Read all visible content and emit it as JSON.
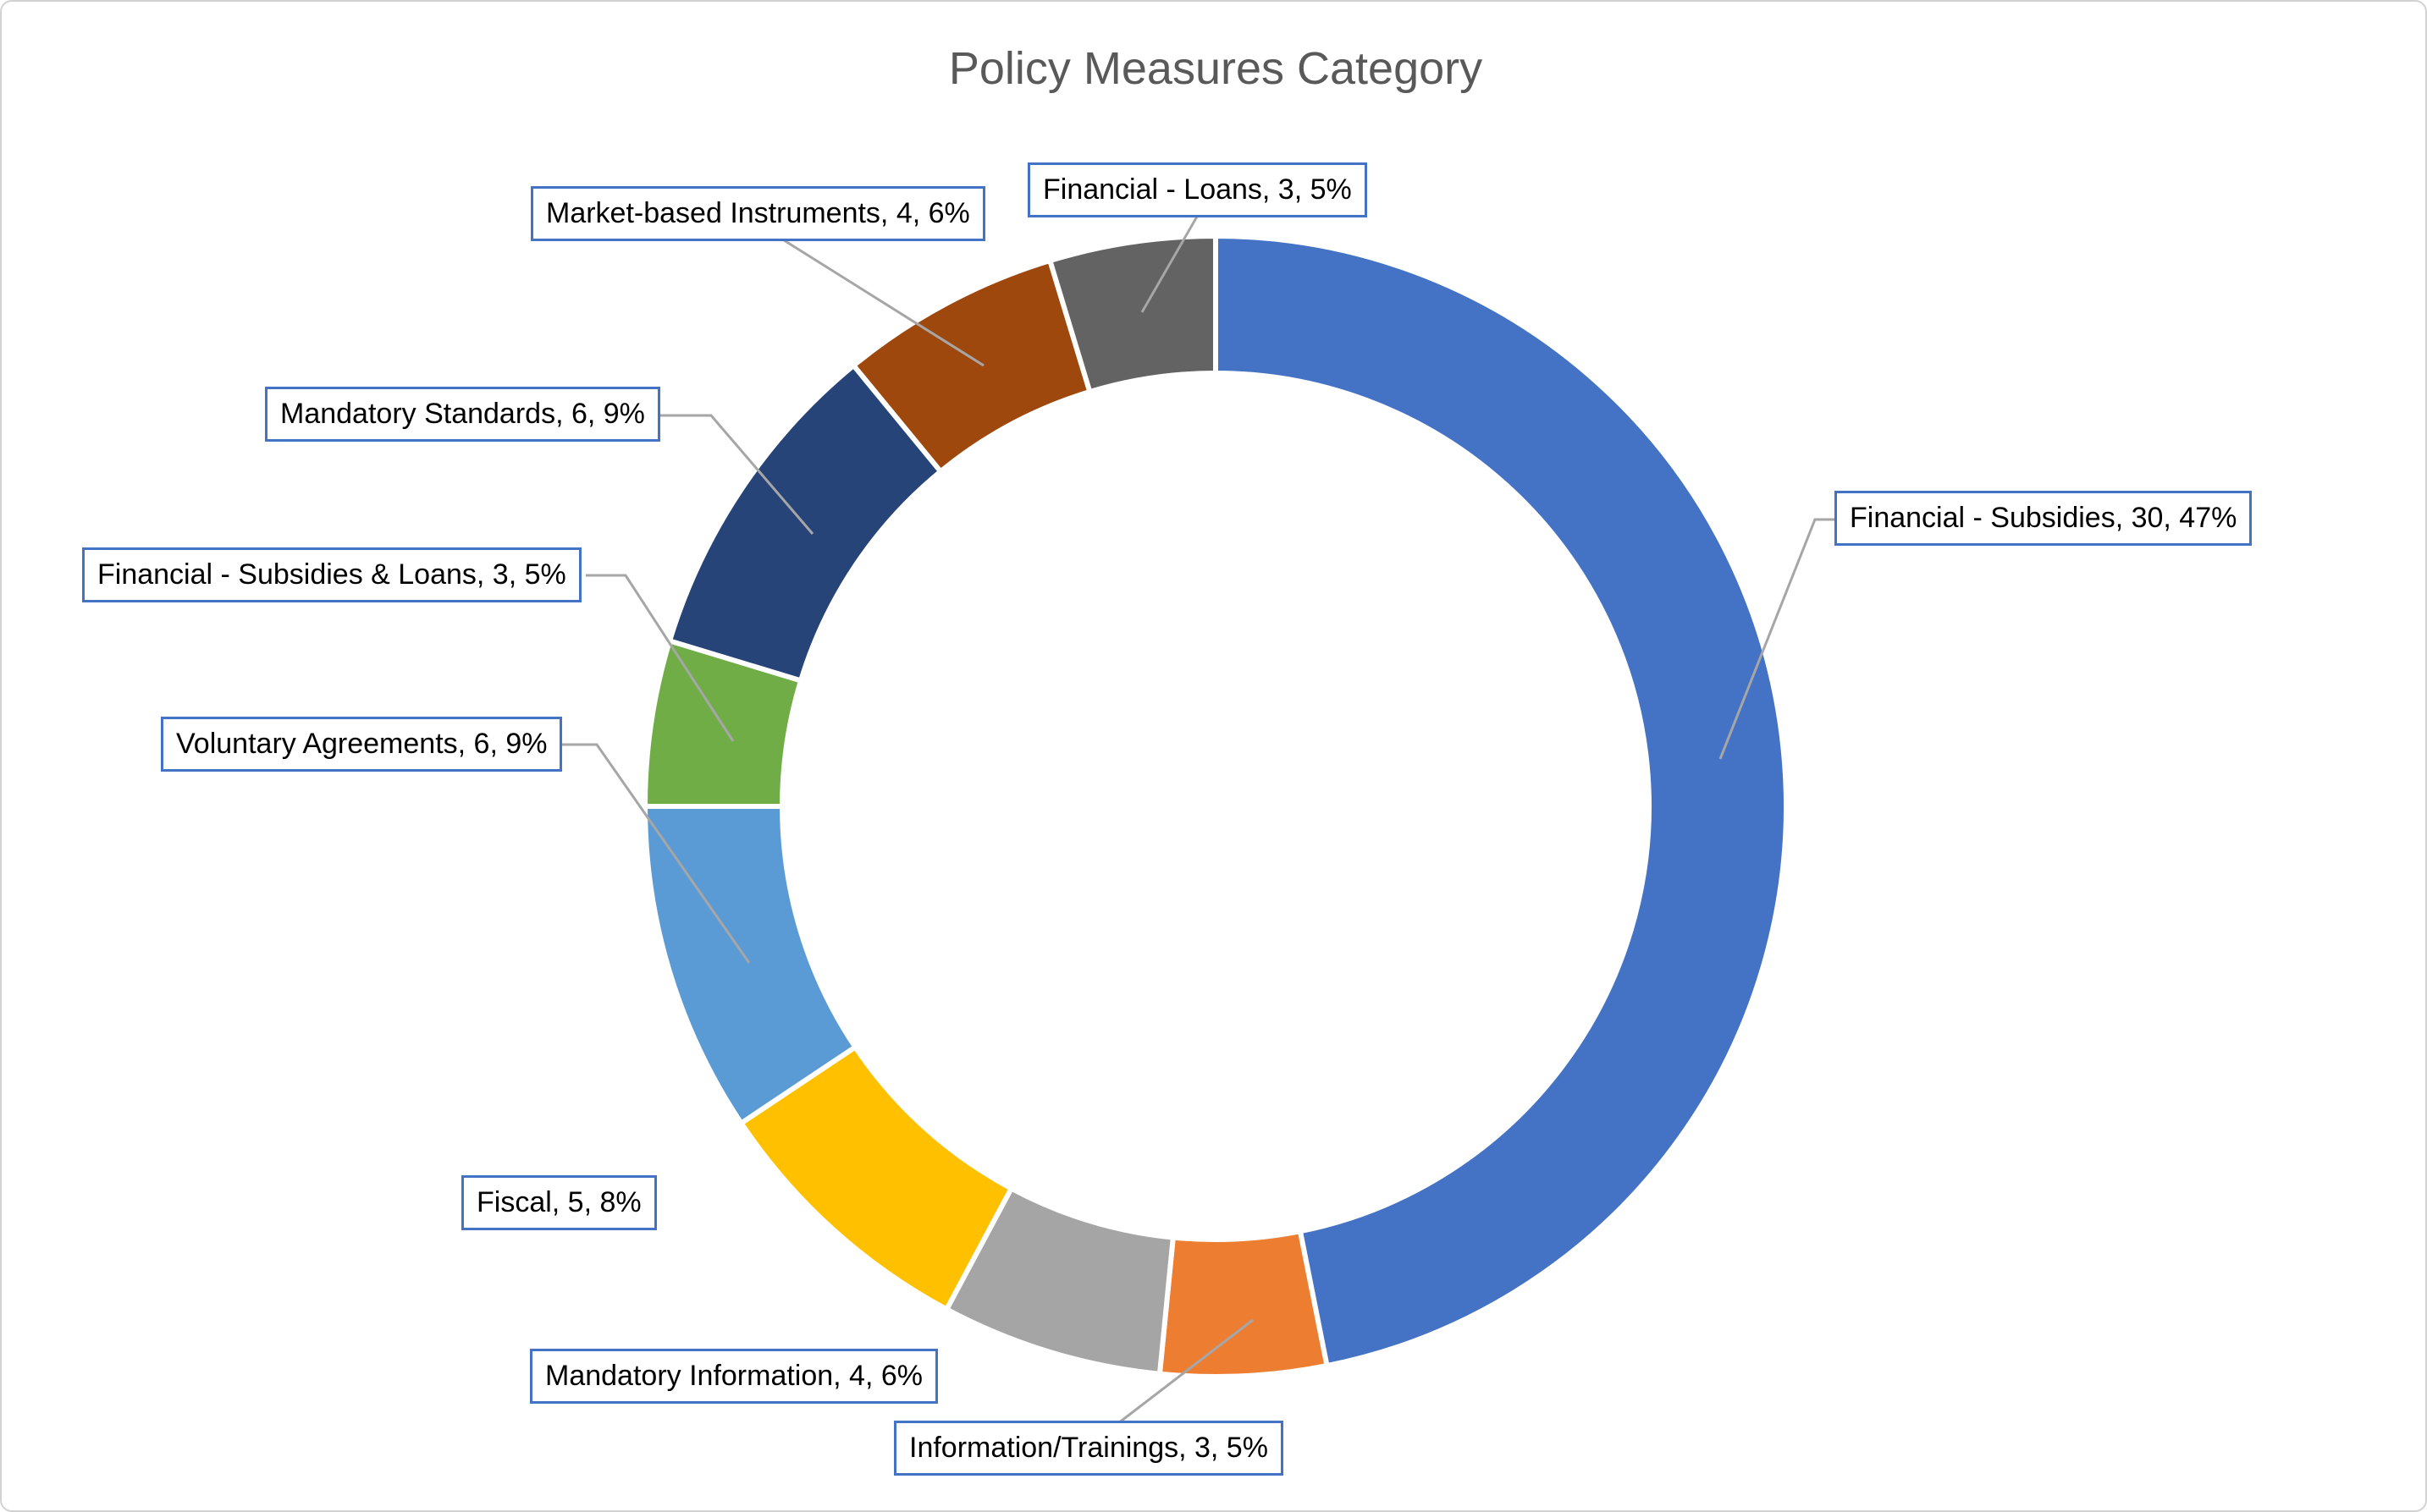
{
  "chart_data": {
    "type": "pie",
    "subtype": "donut",
    "title": "Policy Measures Category",
    "total": 64,
    "legend_position": "none",
    "start_angle_deg": 0,
    "direction": "clockwise",
    "label_format": "{label}, {value}, {pct}%",
    "slices": [
      {
        "label": "Financial - Subsidies",
        "value": 30,
        "pct": 47,
        "color": "#4472C4"
      },
      {
        "label": "Information/Trainings",
        "value": 3,
        "pct": 5,
        "color": "#ED7D31"
      },
      {
        "label": "Mandatory Information",
        "value": 4,
        "pct": 6,
        "color": "#A5A5A5"
      },
      {
        "label": "Fiscal",
        "value": 5,
        "pct": 8,
        "color": "#FFC000"
      },
      {
        "label": "Voluntary Agreements",
        "value": 6,
        "pct": 9,
        "color": "#5B9BD5"
      },
      {
        "label": "Financial - Subsidies & Loans",
        "value": 3,
        "pct": 5,
        "color": "#70AD47"
      },
      {
        "label": "Mandatory Standards",
        "value": 6,
        "pct": 9,
        "color": "#264478"
      },
      {
        "label": "Market-based Instruments",
        "value": 4,
        "pct": 6,
        "color": "#9E480E"
      },
      {
        "label": "Financial - Loans",
        "value": 3,
        "pct": 5,
        "color": "#636363"
      }
    ]
  },
  "styles": {
    "title_color": "#595959",
    "label_border": "#4472C4",
    "leader_line": "#A6A6A6",
    "background": "#ffffff"
  }
}
